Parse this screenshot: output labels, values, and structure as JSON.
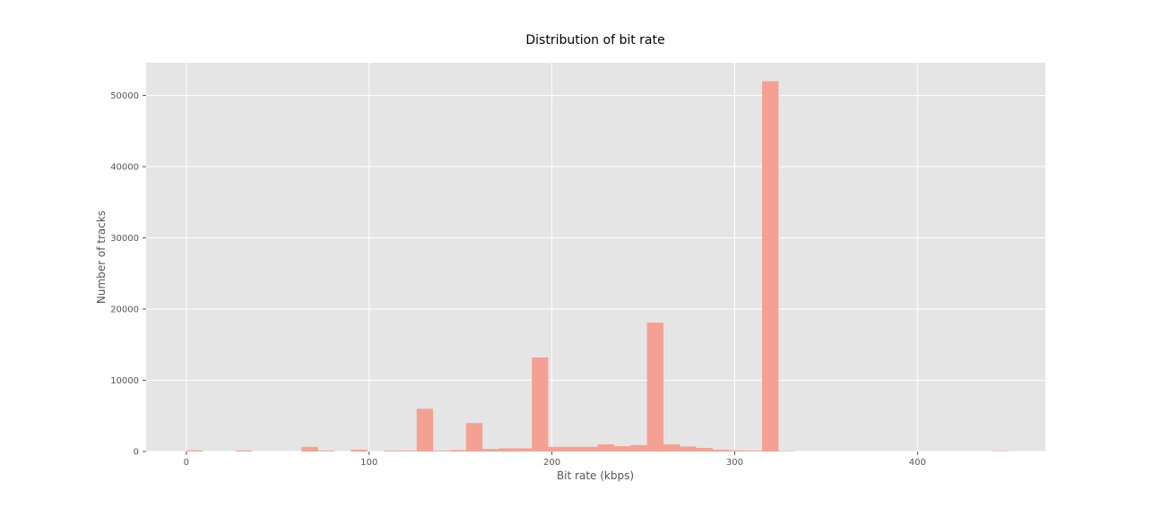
{
  "chart_data": {
    "type": "bar",
    "title": "Distribution of bit rate",
    "xlabel": "Bit rate (kbps)",
    "ylabel": "Number of tracks",
    "xlim": [
      -22,
      470
    ],
    "ylim": [
      0,
      54600
    ],
    "xticks": [
      0,
      100,
      200,
      300,
      400
    ],
    "yticks": [
      0,
      10000,
      20000,
      30000,
      40000,
      50000
    ],
    "grid": true,
    "bin_width": 9,
    "bins": [
      {
        "x0": 0,
        "count": 150
      },
      {
        "x0": 27,
        "count": 150
      },
      {
        "x0": 63,
        "count": 650
      },
      {
        "x0": 72,
        "count": 100
      },
      {
        "x0": 90,
        "count": 250
      },
      {
        "x0": 108,
        "count": 100
      },
      {
        "x0": 117,
        "count": 100
      },
      {
        "x0": 126,
        "count": 6000
      },
      {
        "x0": 135,
        "count": 100
      },
      {
        "x0": 144,
        "count": 200
      },
      {
        "x0": 153,
        "count": 4000
      },
      {
        "x0": 162,
        "count": 350
      },
      {
        "x0": 171,
        "count": 450
      },
      {
        "x0": 180,
        "count": 450
      },
      {
        "x0": 189,
        "count": 13200
      },
      {
        "x0": 198,
        "count": 650
      },
      {
        "x0": 207,
        "count": 650
      },
      {
        "x0": 216,
        "count": 650
      },
      {
        "x0": 225,
        "count": 1000
      },
      {
        "x0": 234,
        "count": 750
      },
      {
        "x0": 243,
        "count": 900
      },
      {
        "x0": 252,
        "count": 18100
      },
      {
        "x0": 261,
        "count": 1000
      },
      {
        "x0": 270,
        "count": 700
      },
      {
        "x0": 279,
        "count": 500
      },
      {
        "x0": 288,
        "count": 250
      },
      {
        "x0": 297,
        "count": 150
      },
      {
        "x0": 306,
        "count": 100
      },
      {
        "x0": 315,
        "count": 52000
      },
      {
        "x0": 324,
        "count": 50
      },
      {
        "x0": 441,
        "count": 50
      }
    ],
    "colors": {
      "bar": "#f4a193",
      "plot_background": "#e5e5e5",
      "grid": "#ffffff"
    }
  }
}
